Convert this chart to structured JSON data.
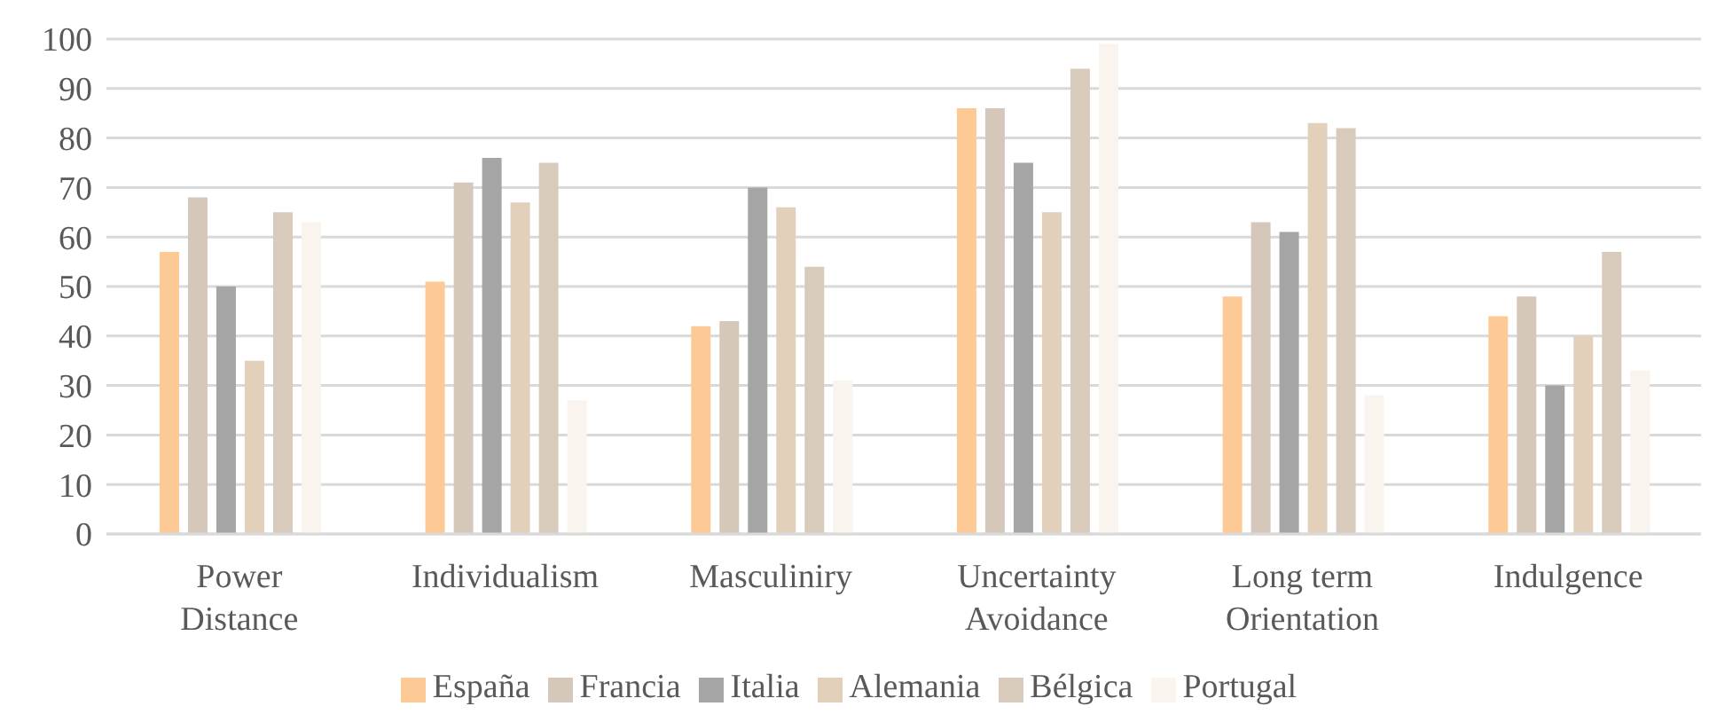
{
  "chart_data": {
    "type": "bar",
    "categories": [
      "Power Distance",
      "Individualism",
      "Masculiniry",
      "Uncertainty Avoidance",
      "Long term Orientation",
      "Indulgence"
    ],
    "series": [
      {
        "name": "España",
        "color": "#fdca95",
        "values": [
          57,
          51,
          42,
          86,
          48,
          44
        ]
      },
      {
        "name": "Francia",
        "color": "#d5c8bb",
        "values": [
          68,
          71,
          43,
          86,
          63,
          48
        ]
      },
      {
        "name": "Italia",
        "color": "#a5a5a5",
        "values": [
          50,
          76,
          70,
          75,
          61,
          30
        ]
      },
      {
        "name": "Alemania",
        "color": "#e3d0bb",
        "values": [
          35,
          67,
          66,
          65,
          83,
          40
        ]
      },
      {
        "name": "Bélgica",
        "color": "#d9cbbb",
        "values": [
          65,
          75,
          54,
          94,
          82,
          57
        ]
      },
      {
        "name": "Portugal",
        "color": "#f9f4ee",
        "values": [
          63,
          27,
          31,
          99,
          28,
          33
        ]
      }
    ],
    "ylim": [
      0,
      100
    ],
    "yticks": [
      0,
      10,
      20,
      30,
      40,
      50,
      60,
      70,
      80,
      90,
      100
    ],
    "grid": "y",
    "legend": "bottom"
  }
}
